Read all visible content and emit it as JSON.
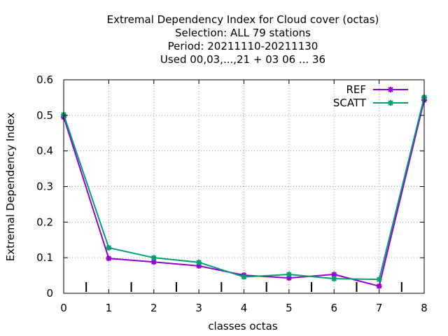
{
  "chart_data": {
    "type": "line",
    "title_lines": [
      "Extremal Dependency Index  for Cloud cover (octas)",
      "Selection: ALL     79 stations",
      "Period: 20211110-20211130",
      "Used  00,03,...,21  + 03 06 ... 36"
    ],
    "xlabel": "classes octas",
    "ylabel": "Extremal Dependency Index",
    "xlim": [
      0,
      8
    ],
    "ylim": [
      0,
      0.6
    ],
    "x_ticks": [
      "0",
      "1",
      "2",
      "3",
      "4",
      "5",
      "6",
      "7",
      "8"
    ],
    "y_ticks": [
      "0",
      "0.1",
      "0.2",
      "0.3",
      "0.4",
      "0.5",
      "0.6"
    ],
    "grid": true,
    "legend_position": "top-right",
    "x": [
      0,
      1,
      2,
      3,
      4,
      5,
      6,
      7,
      8
    ],
    "series": [
      {
        "name": "REF",
        "color": "#9400d3",
        "values": [
          0.495,
          0.098,
          0.088,
          0.077,
          0.051,
          0.043,
          0.053,
          0.02,
          0.543
        ]
      },
      {
        "name": "SCATT",
        "color": "#009e73",
        "values": [
          0.502,
          0.128,
          0.1,
          0.087,
          0.046,
          0.053,
          0.041,
          0.039,
          0.551
        ]
      }
    ],
    "baseline_ticks_x": [
      0.5,
      1.5,
      2.5,
      3.5,
      4.5,
      5.5,
      6.5,
      7.5
    ]
  }
}
